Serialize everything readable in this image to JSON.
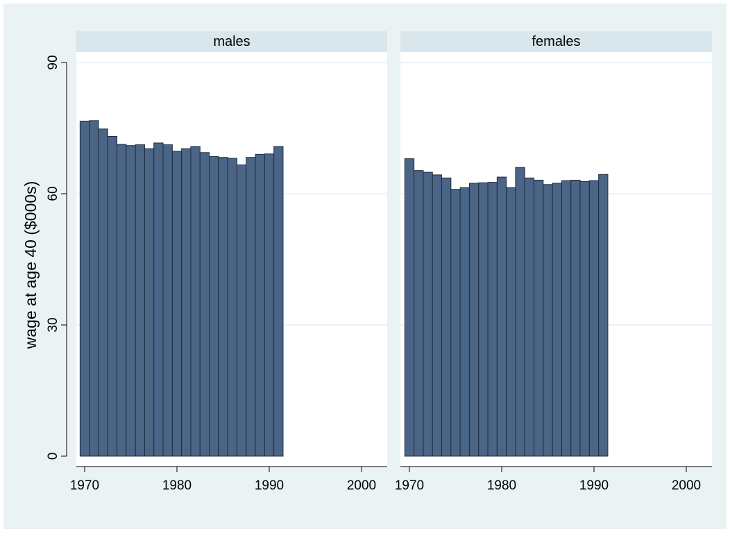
{
  "chart_data": {
    "type": "bar",
    "ylabel": "wage at age 40 ($000s)",
    "ylim": [
      0,
      90
    ],
    "yticks": [
      0,
      30,
      60,
      90
    ],
    "xlim": [
      1968.5,
      2002.5
    ],
    "xticks": [
      1970,
      1980,
      1990,
      2000
    ],
    "grid": true,
    "colors": {
      "bar": "#4a6585",
      "bar_edge": "#1e2d40",
      "outer_background": "#eaf2f3",
      "plot_background": "#ffffff",
      "panel_header": "#d9e6eb",
      "gridline": "#e8eff2"
    },
    "panels": [
      {
        "title": "males",
        "x": [
          1970,
          1971,
          1972,
          1973,
          1974,
          1975,
          1976,
          1977,
          1978,
          1979,
          1980,
          1981,
          1982,
          1983,
          1984,
          1985,
          1986,
          1987,
          1988,
          1989,
          1990,
          1991
        ],
        "values": [
          76.6,
          76.7,
          74.8,
          73.1,
          71.3,
          71.0,
          71.2,
          70.3,
          71.6,
          71.2,
          69.7,
          70.3,
          70.8,
          69.4,
          68.5,
          68.3,
          68.1,
          66.6,
          68.3,
          69.0,
          69.1,
          70.8
        ]
      },
      {
        "title": "females",
        "x": [
          1970,
          1971,
          1972,
          1973,
          1974,
          1975,
          1976,
          1977,
          1978,
          1979,
          1980,
          1981,
          1982,
          1983,
          1984,
          1985,
          1986,
          1987,
          1988,
          1989,
          1990,
          1991
        ],
        "values": [
          68.0,
          65.3,
          64.9,
          64.3,
          63.6,
          61.0,
          61.4,
          62.4,
          62.5,
          62.6,
          63.8,
          61.4,
          66.0,
          63.6,
          63.1,
          62.1,
          62.4,
          63.0,
          63.1,
          62.8,
          63.0,
          64.4
        ]
      }
    ]
  }
}
